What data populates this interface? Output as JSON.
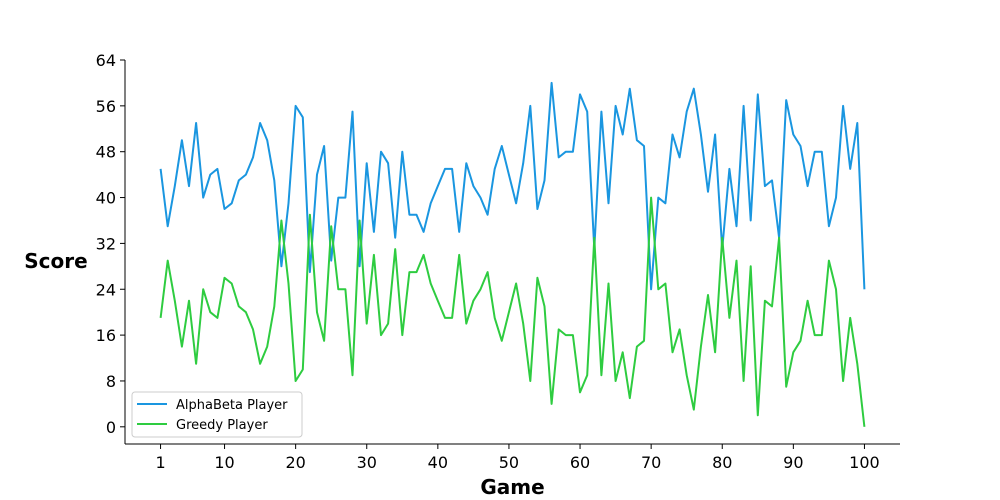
{
  "chart_data": {
    "type": "line",
    "xlabel": "Game",
    "ylabel": "Score",
    "xlim": [
      -4,
      105
    ],
    "ylim": [
      -3,
      64
    ],
    "xticks": [
      1,
      10,
      20,
      30,
      40,
      50,
      60,
      70,
      80,
      90,
      100
    ],
    "yticks": [
      0,
      8,
      16,
      24,
      32,
      40,
      48,
      56,
      64
    ],
    "grid": false,
    "legend_position": "bottom-left",
    "x": [
      1,
      2,
      3,
      4,
      5,
      6,
      7,
      8,
      9,
      10,
      11,
      12,
      13,
      14,
      15,
      16,
      17,
      18,
      19,
      20,
      21,
      22,
      23,
      24,
      25,
      26,
      27,
      28,
      29,
      30,
      31,
      32,
      33,
      34,
      35,
      36,
      37,
      38,
      39,
      40,
      41,
      42,
      43,
      44,
      45,
      46,
      47,
      48,
      49,
      50,
      51,
      52,
      53,
      54,
      55,
      56,
      57,
      58,
      59,
      60,
      61,
      62,
      63,
      64,
      65,
      66,
      67,
      68,
      69,
      70,
      71,
      72,
      73,
      74,
      75,
      76,
      77,
      78,
      79,
      80,
      81,
      82,
      83,
      84,
      85,
      86,
      87,
      88,
      89,
      90,
      91,
      92,
      93,
      94,
      95,
      96,
      97,
      98,
      99,
      100
    ],
    "series": [
      {
        "name": "AlphaBeta Player",
        "color": "#1a96e0",
        "values": [
          45,
          35,
          42,
          50,
          42,
          53,
          40,
          44,
          45,
          38,
          39,
          43,
          44,
          47,
          53,
          50,
          43,
          28,
          39,
          56,
          54,
          27,
          44,
          49,
          29,
          40,
          40,
          55,
          28,
          46,
          34,
          48,
          46,
          33,
          48,
          37,
          37,
          34,
          39,
          42,
          45,
          45,
          34,
          46,
          42,
          40,
          37,
          45,
          49,
          44,
          39,
          46,
          56,
          38,
          43,
          60,
          47,
          48,
          48,
          58,
          55,
          31,
          55,
          39,
          56,
          51,
          59,
          50,
          49,
          24,
          40,
          39,
          51,
          47,
          55,
          59,
          51,
          41,
          51,
          31,
          45,
          35,
          56,
          36,
          58,
          42,
          43,
          33,
          57,
          51,
          49,
          42,
          48,
          48,
          35,
          40,
          56,
          45,
          53,
          24
        ]
      },
      {
        "name": "Greedy Player",
        "color": "#2ecc40",
        "values": [
          19,
          29,
          22,
          14,
          22,
          11,
          24,
          20,
          19,
          26,
          25,
          21,
          20,
          17,
          11,
          14,
          21,
          36,
          25,
          8,
          10,
          37,
          20,
          15,
          35,
          24,
          24,
          9,
          36,
          18,
          30,
          16,
          18,
          31,
          16,
          27,
          27,
          30,
          25,
          22,
          19,
          19,
          30,
          18,
          22,
          24,
          27,
          19,
          15,
          20,
          25,
          18,
          8,
          26,
          21,
          4,
          17,
          16,
          16,
          6,
          9,
          33,
          9,
          25,
          8,
          13,
          5,
          14,
          15,
          40,
          24,
          25,
          13,
          17,
          9,
          3,
          14,
          23,
          13,
          33,
          19,
          29,
          8,
          28,
          2,
          22,
          21,
          33,
          7,
          13,
          15,
          22,
          16,
          16,
          29,
          24,
          8,
          19,
          11,
          0
        ]
      }
    ]
  }
}
